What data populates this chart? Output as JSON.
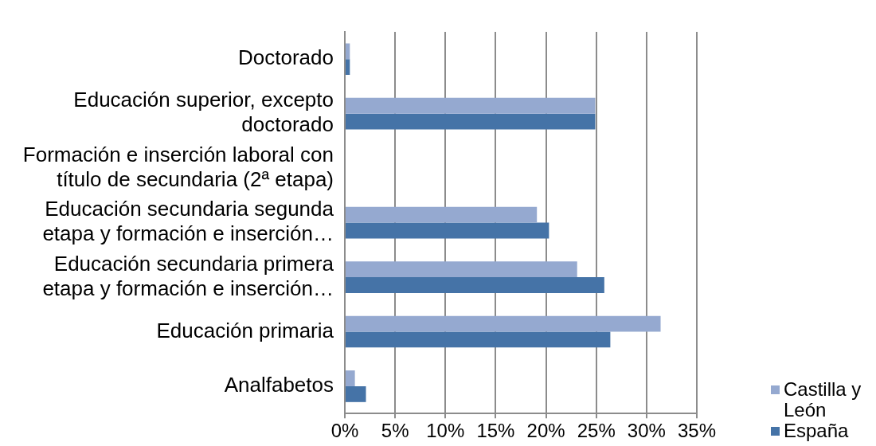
{
  "chart_data": {
    "type": "bar",
    "orientation": "horizontal",
    "categories": [
      "Doctorado",
      "Educación superior, excepto doctorado",
      "Formación e inserción laboral con título de secundaria (2ª etapa)",
      "Educación secundaria segunda etapa y formación e inserción…",
      "Educación secundaria primera etapa y formación e inserción…",
      "Educación primaria",
      "Analfabetos"
    ],
    "series": [
      {
        "name": "Castilla y León",
        "color": "#95a9d0",
        "values": [
          0.5,
          24.9,
          null,
          19.1,
          23.1,
          31.4,
          1.0
        ]
      },
      {
        "name": "España",
        "color": "#4573a7",
        "values": [
          0.5,
          24.9,
          0,
          20.3,
          25.8,
          26.4,
          2.1
        ]
      }
    ],
    "xlim": [
      0,
      35
    ],
    "xticks": [
      {
        "value": 0,
        "label": "0%"
      },
      {
        "value": 5,
        "label": "5%"
      },
      {
        "value": 10,
        "label": "10%"
      },
      {
        "value": 15,
        "label": "15%"
      },
      {
        "value": 20,
        "label": "20%"
      },
      {
        "value": 25,
        "label": "25%"
      },
      {
        "value": 30,
        "label": "30%"
      },
      {
        "value": 35,
        "label": "35%"
      }
    ],
    "grid": "x",
    "legend": "bottom right"
  }
}
